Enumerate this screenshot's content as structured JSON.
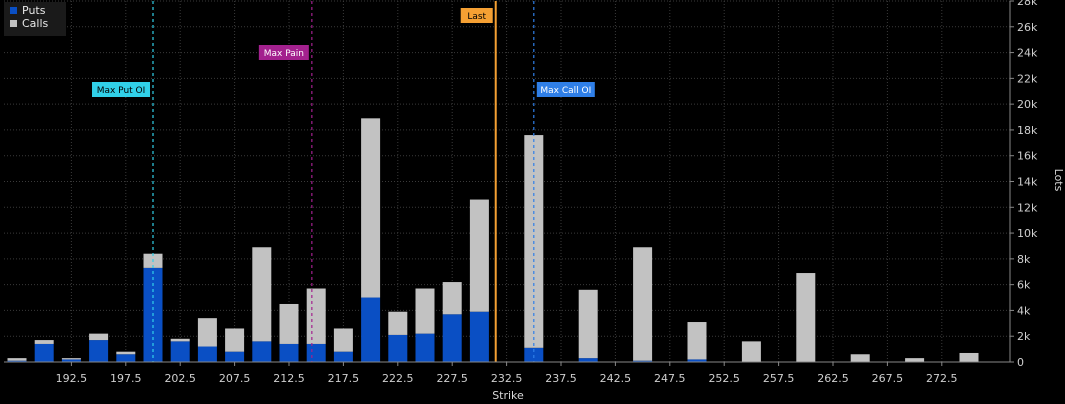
{
  "colors": {
    "puts": "#0a4fc4",
    "calls": "#c2c2c2",
    "max_put_oi": "#31d0e8",
    "max_pain": "#a3218e",
    "last": "#f5a033",
    "max_call_oi": "#2f7fe8"
  },
  "legend": {
    "puts_label": "Puts",
    "calls_label": "Calls"
  },
  "chart_data": {
    "type": "bar",
    "stacked": true,
    "xlabel": "Strike",
    "ylabel": "Lots",
    "ylim": [
      0,
      28000
    ],
    "y_ticks": [
      0,
      2000,
      4000,
      6000,
      8000,
      10000,
      12000,
      14000,
      16000,
      18000,
      20000,
      22000,
      24000,
      26000,
      28000
    ],
    "y_tick_labels": [
      "0",
      "2k",
      "4k",
      "6k",
      "8k",
      "10k",
      "12k",
      "14k",
      "16k",
      "18k",
      "20k",
      "22k",
      "24k",
      "26k",
      "28k"
    ],
    "x_tick_labels": [
      "192.5",
      "197.5",
      "202.5",
      "207.5",
      "212.5",
      "217.5",
      "222.5",
      "227.5",
      "232.5",
      "237.5",
      "242.5",
      "247.5",
      "252.5",
      "257.5",
      "262.5",
      "267.5",
      "272.5"
    ],
    "categories": [
      187.5,
      190,
      192.5,
      195,
      197.5,
      200,
      202.5,
      205,
      207.5,
      210,
      212.5,
      215,
      217.5,
      220,
      222.5,
      225,
      227.5,
      230,
      232.5,
      235,
      237.5,
      240,
      242.5,
      245,
      247.5,
      250,
      252.5,
      255,
      257.5,
      260,
      262.5,
      265,
      267.5,
      270,
      272.5,
      275
    ],
    "series": [
      {
        "name": "Puts",
        "values": [
          100,
          1400,
          200,
          1700,
          600,
          7300,
          1600,
          1200,
          800,
          1600,
          1400,
          1400,
          800,
          5000,
          2100,
          2200,
          3700,
          3900,
          0,
          1100,
          0,
          300,
          0,
          100,
          0,
          200,
          0,
          0,
          0,
          0,
          0,
          0,
          0,
          0,
          0,
          0
        ]
      },
      {
        "name": "Calls",
        "values": [
          200,
          300,
          100,
          500,
          200,
          1100,
          200,
          2200,
          1800,
          7300,
          3100,
          4300,
          1800,
          13900,
          1800,
          3500,
          2500,
          8700,
          0,
          16500,
          0,
          5300,
          0,
          8800,
          0,
          2900,
          0,
          1600,
          0,
          6900,
          0,
          600,
          0,
          300,
          0,
          700
        ]
      }
    ],
    "markers": [
      {
        "label": "Max Put OI",
        "x": 200
      },
      {
        "label": "Max Pain",
        "x": 214.6
      },
      {
        "label": "Last",
        "x": 231.5
      },
      {
        "label": "Max Call OI",
        "x": 235
      }
    ],
    "grid": true
  }
}
